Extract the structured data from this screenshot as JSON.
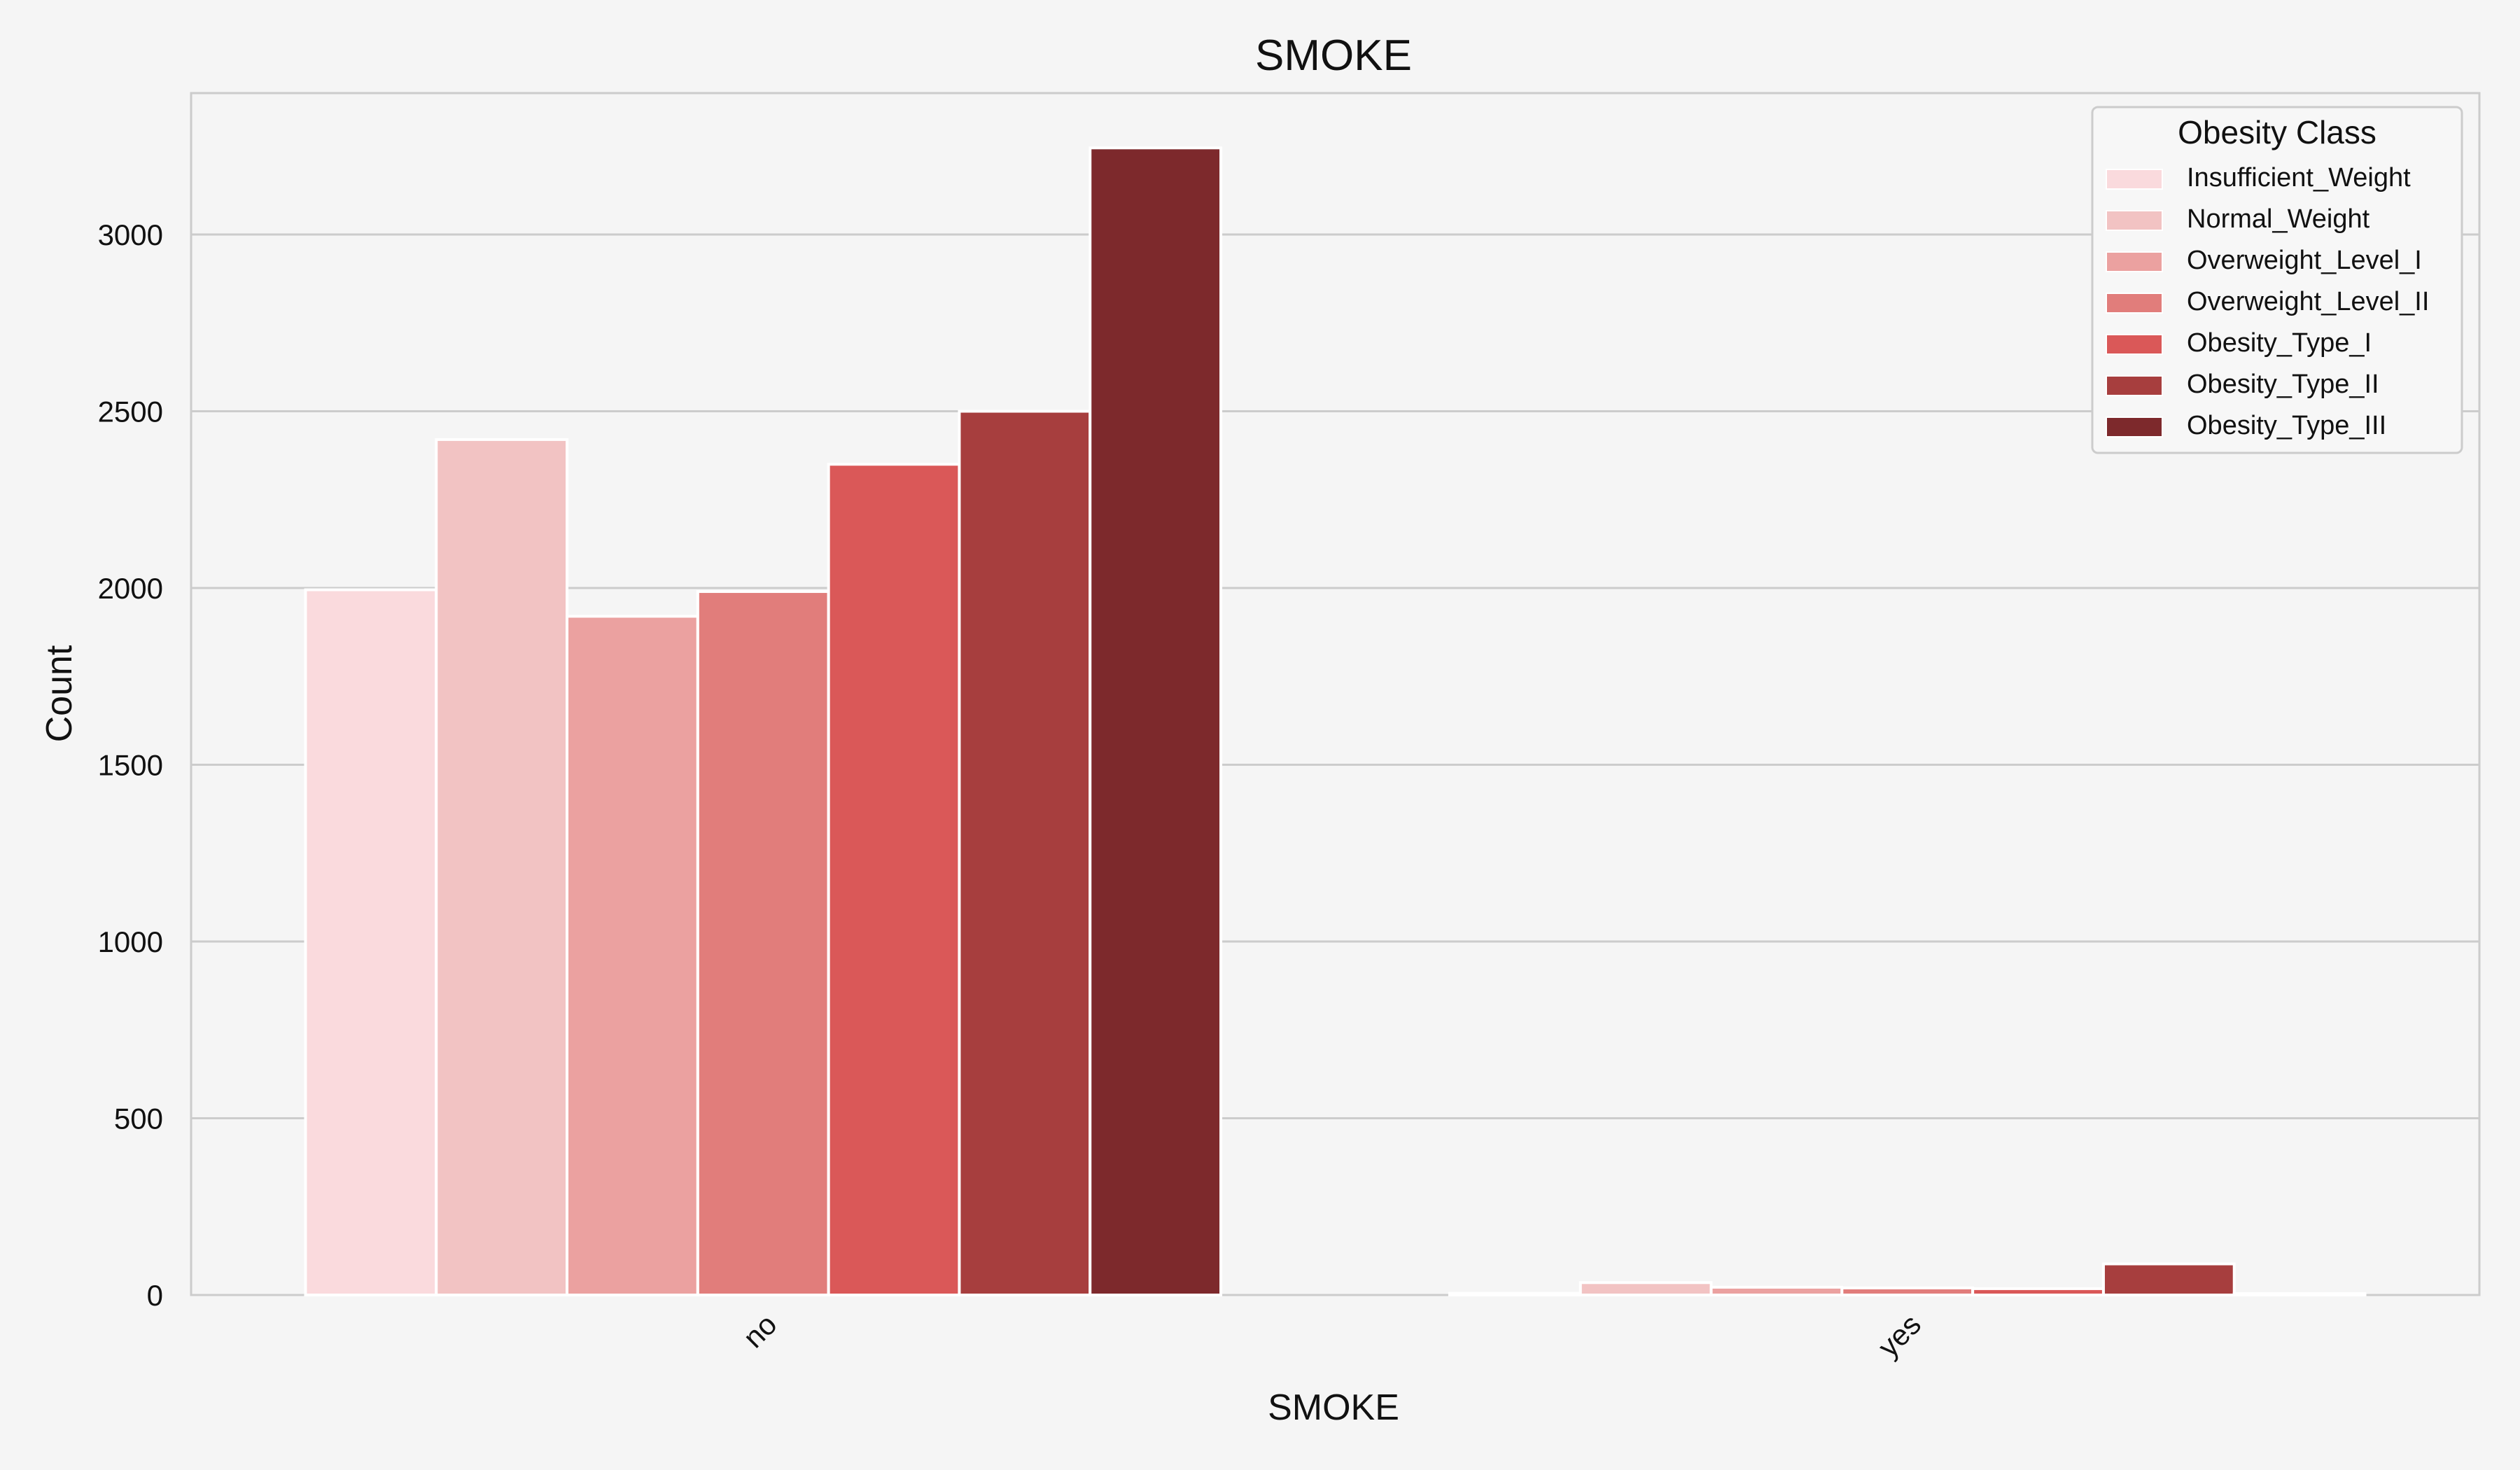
{
  "chart_data": {
    "type": "bar",
    "title": "SMOKE",
    "xlabel": "SMOKE",
    "ylabel": "Count",
    "categories": [
      "no",
      "yes"
    ],
    "ylim": [
      0,
      3400
    ],
    "yticks": [
      0,
      500,
      1000,
      1500,
      2000,
      2500,
      3000
    ],
    "grid": true,
    "legend": {
      "title": "Obesity Class",
      "placement": "top-right"
    },
    "series": [
      {
        "name": "Insufficient_Weight",
        "color": "#fadadd",
        "values": [
          1995,
          5
        ]
      },
      {
        "name": "Normal_Weight",
        "color": "#f2c3c3",
        "values": [
          2420,
          35
        ]
      },
      {
        "name": "Overweight_Level_I",
        "color": "#eba1a0",
        "values": [
          1920,
          22
        ]
      },
      {
        "name": "Overweight_Level_II",
        "color": "#e17d7b",
        "values": [
          1990,
          20
        ]
      },
      {
        "name": "Obesity_Type_I",
        "color": "#da5858",
        "values": [
          2350,
          18
        ]
      },
      {
        "name": "Obesity_Type_II",
        "color": "#a73e3e",
        "values": [
          2500,
          88
        ]
      },
      {
        "name": "Obesity_Type_III",
        "color": "#7d292c",
        "values": [
          3245,
          4
        ]
      }
    ]
  }
}
